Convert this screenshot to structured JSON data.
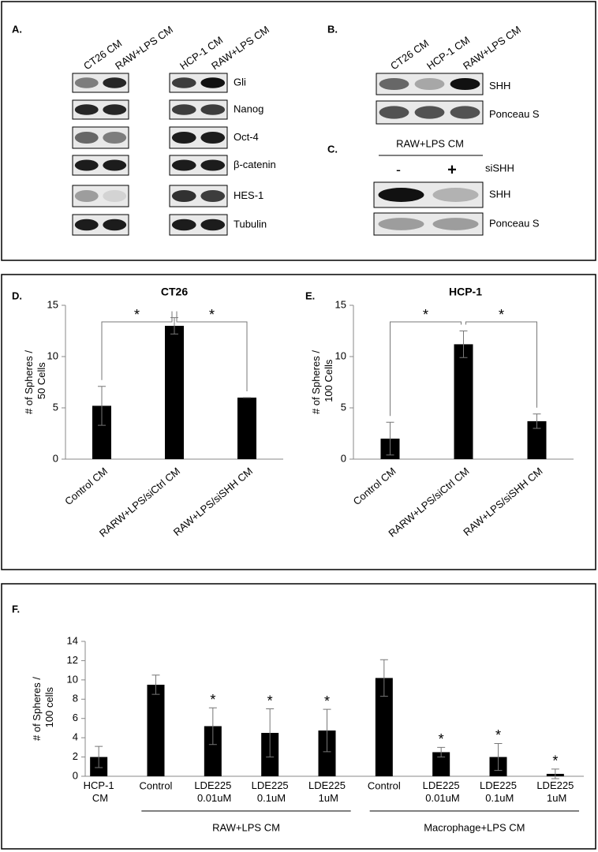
{
  "blots": {
    "A": {
      "label": "A.",
      "left_lanes": [
        "CT26 CM",
        "RAW+LPS CM"
      ],
      "right_lanes": [
        "HCP-1 CM",
        "RAW+LPS CM"
      ],
      "rows": [
        "Gli",
        "Nanog",
        "Oct-4",
        "β-catenin",
        "HES-1",
        "Tubulin"
      ]
    },
    "B": {
      "label": "B.",
      "lanes": [
        "CT26 CM",
        "HCP-1 CM",
        "RAW+LPS CM"
      ],
      "rows": [
        "SHH",
        "Ponceau S"
      ]
    },
    "C": {
      "label": "C.",
      "header": "RAW+LPS CM",
      "lanes": [
        "-",
        "+"
      ],
      "treatment": "siSHH",
      "rows": [
        "SHH",
        "Ponceau S"
      ]
    }
  },
  "chart_data": [
    {
      "type": "bar",
      "panel_label": "D.",
      "title": "CT26",
      "y_label": "# of Spheres / 50 Cells",
      "categories": [
        "Control CM",
        "RARW+LPS/siCtrl CM",
        "RAW+LPS/siSHH CM"
      ],
      "values": [
        5.2,
        13.0,
        6.0
      ],
      "errors": [
        1.9,
        0.8,
        0
      ],
      "color": "#000000",
      "ylim": [
        0,
        15
      ],
      "yticks": [
        0,
        5,
        10,
        15
      ],
      "bracket_labels": [
        "*",
        "*"
      ]
    },
    {
      "type": "bar",
      "panel_label": "E.",
      "title": "HCP-1",
      "y_label": "# of Spheres / 100 Cells",
      "categories": [
        "Control CM",
        "RARW+LPS/siCtrl CM",
        "RAW+LPS/siSHH CM"
      ],
      "values": [
        2.0,
        11.2,
        3.7
      ],
      "errors": [
        1.6,
        1.3,
        0.7
      ],
      "color": "#000000",
      "ylim": [
        0,
        15
      ],
      "yticks": [
        0,
        5,
        10,
        15
      ],
      "bracket_labels": [
        "*",
        "*"
      ]
    },
    {
      "type": "bar",
      "panel_label": "F.",
      "y_label": "# of Spheres / 100 cells",
      "categories": [
        "HCP-1 CM",
        "Control",
        "LDE225 0.01uM",
        "LDE225 0.1uM",
        "LDE225 1uM",
        "Control",
        "LDE225 0.01uM",
        "LDE225 0.1uM",
        "LDE225 1uM"
      ],
      "values": [
        2.0,
        9.5,
        5.2,
        4.5,
        4.75,
        10.2,
        2.5,
        2.0,
        0.25
      ],
      "errors": [
        1.1,
        1.0,
        1.9,
        2.5,
        2.2,
        1.9,
        0.5,
        1.4,
        0.5
      ],
      "color": "#000000",
      "significance": [
        null,
        null,
        "*",
        "*",
        "*",
        null,
        "*",
        "*",
        "*"
      ],
      "group_labels": [
        "RAW+LPS CM",
        "Macrophage+LPS CM"
      ],
      "ylim": [
        0,
        14
      ],
      "yticks": [
        0,
        2,
        4,
        6,
        8,
        10,
        12,
        14
      ]
    }
  ]
}
